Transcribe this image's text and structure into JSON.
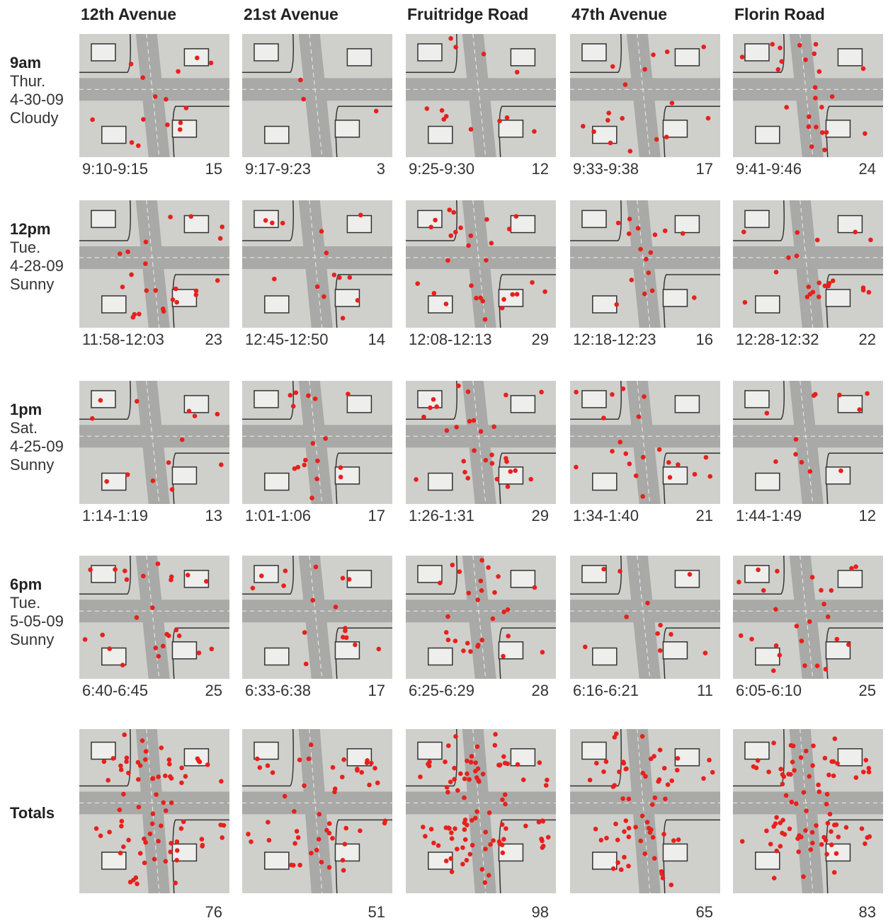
{
  "columns": [
    "12th Avenue",
    "21st Avenue",
    "Fruitridge Road",
    "47th Avenue",
    "Florin Road"
  ],
  "rows": [
    {
      "time": "9am",
      "day": "Thur.",
      "date": "4-30-09",
      "weather": "Cloudy",
      "cells": [
        {
          "range": "9:10-9:15",
          "count": 15
        },
        {
          "range": "9:17-9:23",
          "count": 3
        },
        {
          "range": "9:25-9:30",
          "count": 12
        },
        {
          "range": "9:33-9:38",
          "count": 17
        },
        {
          "range": "9:41-9:46",
          "count": 24
        }
      ]
    },
    {
      "time": "12pm",
      "day": "Tue.",
      "date": "4-28-09",
      "weather": "Sunny",
      "cells": [
        {
          "range": "11:58-12:03",
          "count": 23
        },
        {
          "range": "12:45-12:50",
          "count": 14
        },
        {
          "range": "12:08-12:13",
          "count": 29
        },
        {
          "range": "12:18-12:23",
          "count": 16
        },
        {
          "range": "12:28-12:32",
          "count": 22
        }
      ]
    },
    {
      "time": "1pm",
      "day": "Sat.",
      "date": "4-25-09",
      "weather": "Sunny",
      "cells": [
        {
          "range": "1:14-1:19",
          "count": 13
        },
        {
          "range": "1:01-1:06",
          "count": 17
        },
        {
          "range": "1:26-1:31",
          "count": 29
        },
        {
          "range": "1:34-1:40",
          "count": 21
        },
        {
          "range": "1:44-1:49",
          "count": 12
        }
      ]
    },
    {
      "time": "6pm",
      "day": "Tue.",
      "date": "5-05-09",
      "weather": "Sunny",
      "cells": [
        {
          "range": "6:40-6:45",
          "count": 25
        },
        {
          "range": "6:33-6:38",
          "count": 17
        },
        {
          "range": "6:25-6:29",
          "count": 28
        },
        {
          "range": "6:16-6:21",
          "count": 11
        },
        {
          "range": "6:05-6:10",
          "count": 25
        }
      ]
    }
  ],
  "totals": {
    "label": "Totals",
    "counts": [
      76,
      51,
      98,
      65,
      83
    ]
  }
}
